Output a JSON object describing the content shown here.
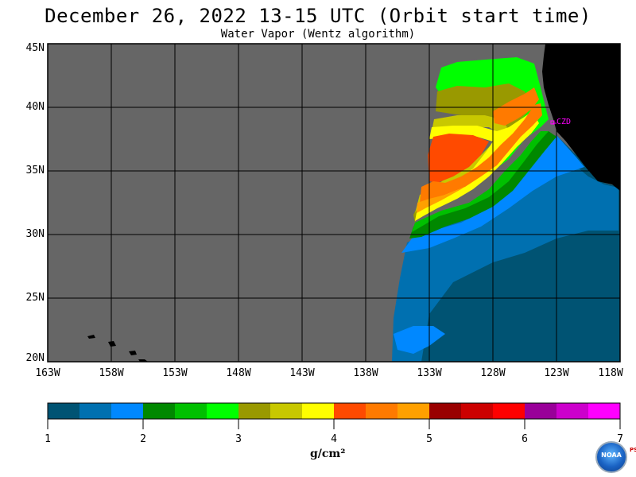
{
  "title": "December 26, 2022  13-15 UTC  (Orbit start time)",
  "subtitle": "Water Vapor (Wentz algorithm)",
  "map": {
    "lat_range": [
      20,
      45
    ],
    "lon_range": [
      -163,
      -118
    ],
    "lat_labels": [
      "45N",
      "40N",
      "35N",
      "30N",
      "25N",
      "20N"
    ],
    "lon_labels": [
      "163W",
      "158W",
      "153W",
      "148W",
      "143W",
      "138W",
      "133W",
      "128W",
      "123W",
      "118W"
    ],
    "station_label": "CZD",
    "colors": {
      "no_data": "#666666",
      "land": "#000000",
      "grid": "#000000",
      "station": "#ff00ff"
    }
  },
  "colorbar": {
    "unit": "g/cm²",
    "labels": [
      "1",
      "2",
      "3",
      "4",
      "5",
      "6",
      "7"
    ],
    "range": [
      1,
      7
    ],
    "colors": [
      "#005373",
      "#0070b0",
      "#0088ff",
      "#008800",
      "#00c000",
      "#00ff00",
      "#999900",
      "#c8c800",
      "#ffff00",
      "#ff4a00",
      "#ff7a00",
      "#ffa000",
      "#990000",
      "#cc0000",
      "#ff0000",
      "#990099",
      "#cc00cc",
      "#ff00ff"
    ]
  },
  "logo": {
    "text": "NOAA",
    "side_text": "PSL"
  }
}
